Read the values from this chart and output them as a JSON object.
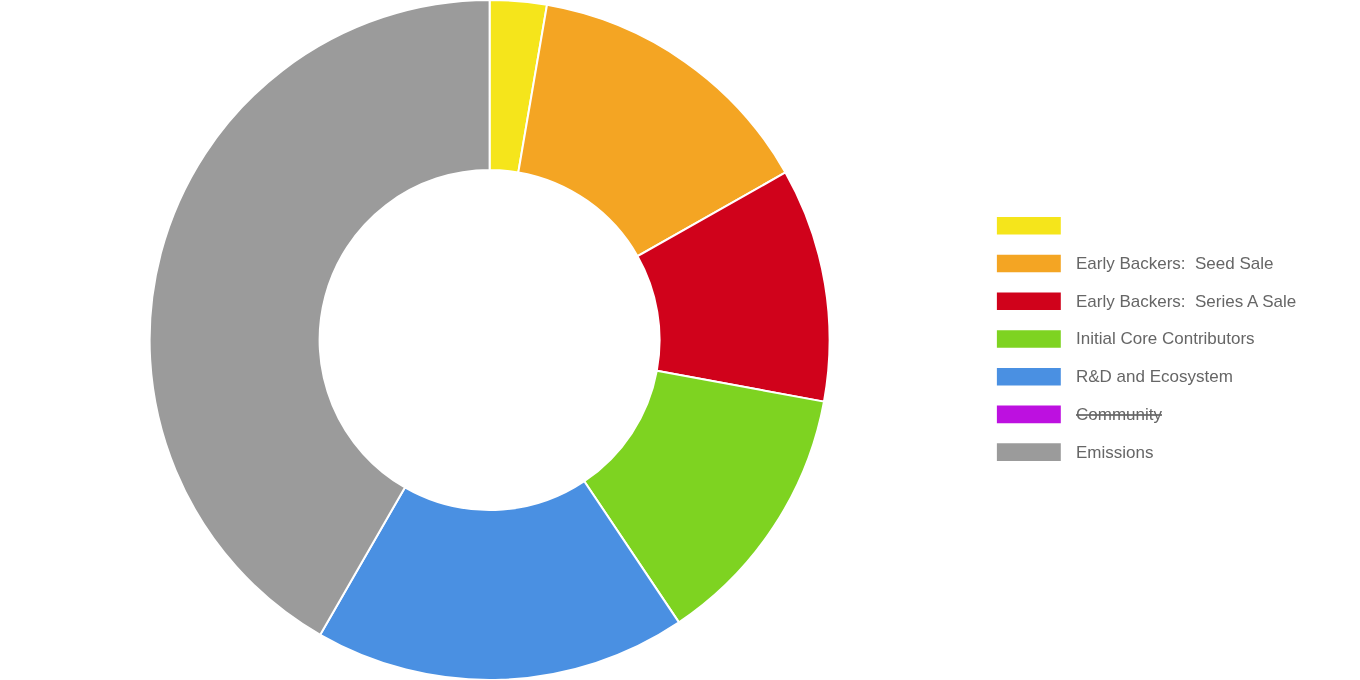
{
  "chart_data": {
    "type": "donut",
    "categories": [
      null,
      "Early Backers:  Seed Sale",
      "Early Backers:  Series A Sale",
      "Initial Core Contributors",
      "R&D and Ecosystem",
      "Community",
      "Emissions"
    ],
    "values": [
      2.7,
      14.1,
      11.1,
      12.7,
      17.7,
      null,
      41.7
    ],
    "colors": [
      "#f5e51b",
      "#f4a523",
      "#d0021b",
      "#7ed321",
      "#4a90e2",
      "#bd10e0",
      "#9b9b9b"
    ],
    "legend": "right"
  }
}
